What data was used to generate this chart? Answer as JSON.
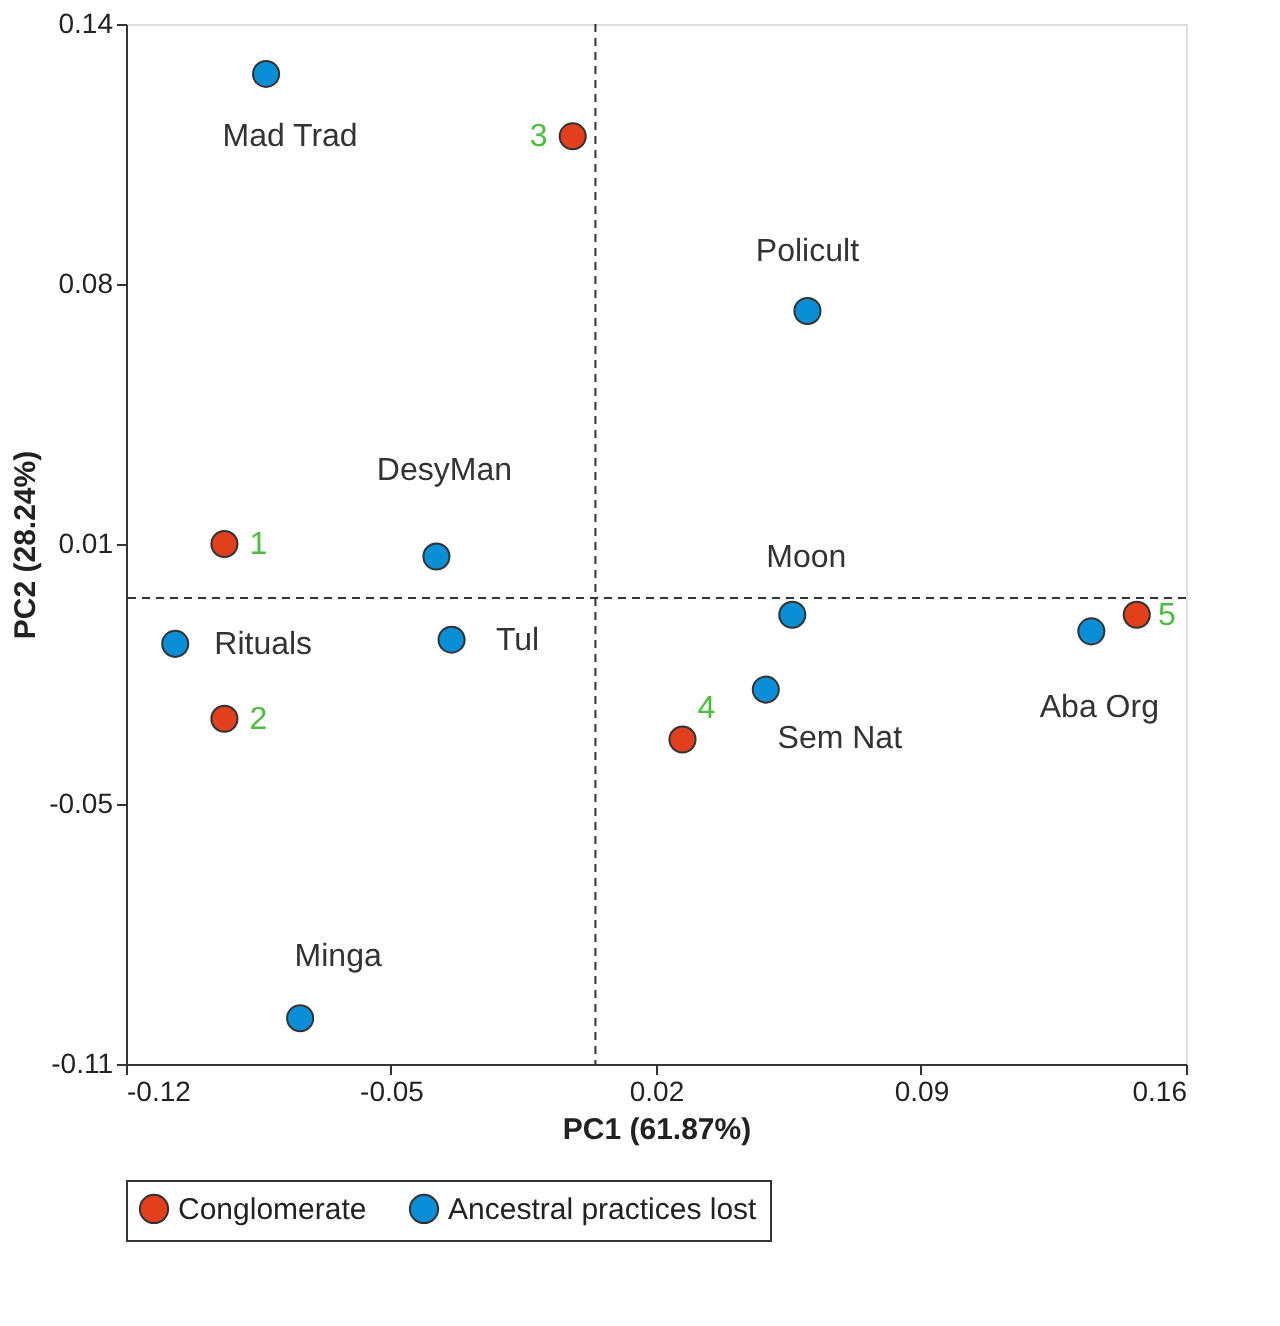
{
  "chart_data": {
    "type": "scatter",
    "xlabel": "PC1 (61.87%)",
    "ylabel": "PC2 (28.24%)",
    "xlim": [
      -0.12,
      0.16
    ],
    "xticks": [
      -0.12,
      -0.05,
      0.02,
      0.09,
      0.16
    ],
    "ylim": [
      -0.11,
      0.14
    ],
    "yticks": [
      -0.11,
      {
        "value": -0.0475,
        "label": "-0.05"
      },
      {
        "value": 0.015,
        "label": "0.01"
      },
      {
        "value": 0.0775,
        "label": "0.08"
      },
      0.14
    ],
    "grid": false,
    "legend": "bottom",
    "marker": "circle",
    "series": [
      {
        "name": "Conglomerate",
        "color": "#e2401c",
        "x": [
          -0.094,
          -0.094,
          -0.002,
          0.027,
          0.147
        ],
        "values": [
          0.015,
          -0.027,
          0.113,
          -0.032,
          -0.002
        ]
      },
      {
        "name": "Ancestral practices lost",
        "color": "#0a8fd6",
        "x": [
          -0.083,
          0.06,
          -0.038,
          -0.107,
          -0.034,
          0.056,
          0.049,
          0.135,
          -0.074
        ],
        "values": [
          0.128,
          0.071,
          0.012,
          -0.009,
          -0.008,
          -0.002,
          -0.02,
          -0.006,
          -0.099
        ]
      }
    ],
    "ref_lines": [
      {
        "axis": "x",
        "value": 0.004,
        "line_style": "dashed",
        "color": "#333333"
      },
      {
        "axis": "y",
        "value": 0.002,
        "line_style": "dashed",
        "color": "#333333"
      }
    ],
    "annotations": [
      {
        "text": "Mad Trad",
        "x": -0.083,
        "y": 0.128
      },
      {
        "text": "Policult",
        "x": 0.06,
        "y": 0.071
      },
      {
        "text": "DesyMan",
        "x": -0.038,
        "y": 0.012
      },
      {
        "text": "Moon",
        "x": 0.056,
        "y": -0.002
      },
      {
        "text": "Rituals",
        "x": -0.107,
        "y": -0.009
      },
      {
        "text": "Tul",
        "x": -0.034,
        "y": -0.008
      },
      {
        "text": "Sem Nat",
        "x": 0.049,
        "y": -0.02
      },
      {
        "text": "Aba Org",
        "x": 0.135,
        "y": -0.006
      },
      {
        "text": "Minga",
        "x": -0.074,
        "y": -0.099
      },
      {
        "text": "1",
        "x": -0.094,
        "y": 0.015
      },
      {
        "text": "2",
        "x": -0.094,
        "y": -0.027
      },
      {
        "text": "3",
        "x": -0.002,
        "y": 0.113
      },
      {
        "text": "4",
        "x": 0.027,
        "y": -0.032
      },
      {
        "text": "5",
        "x": 0.147,
        "y": -0.002
      }
    ]
  }
}
